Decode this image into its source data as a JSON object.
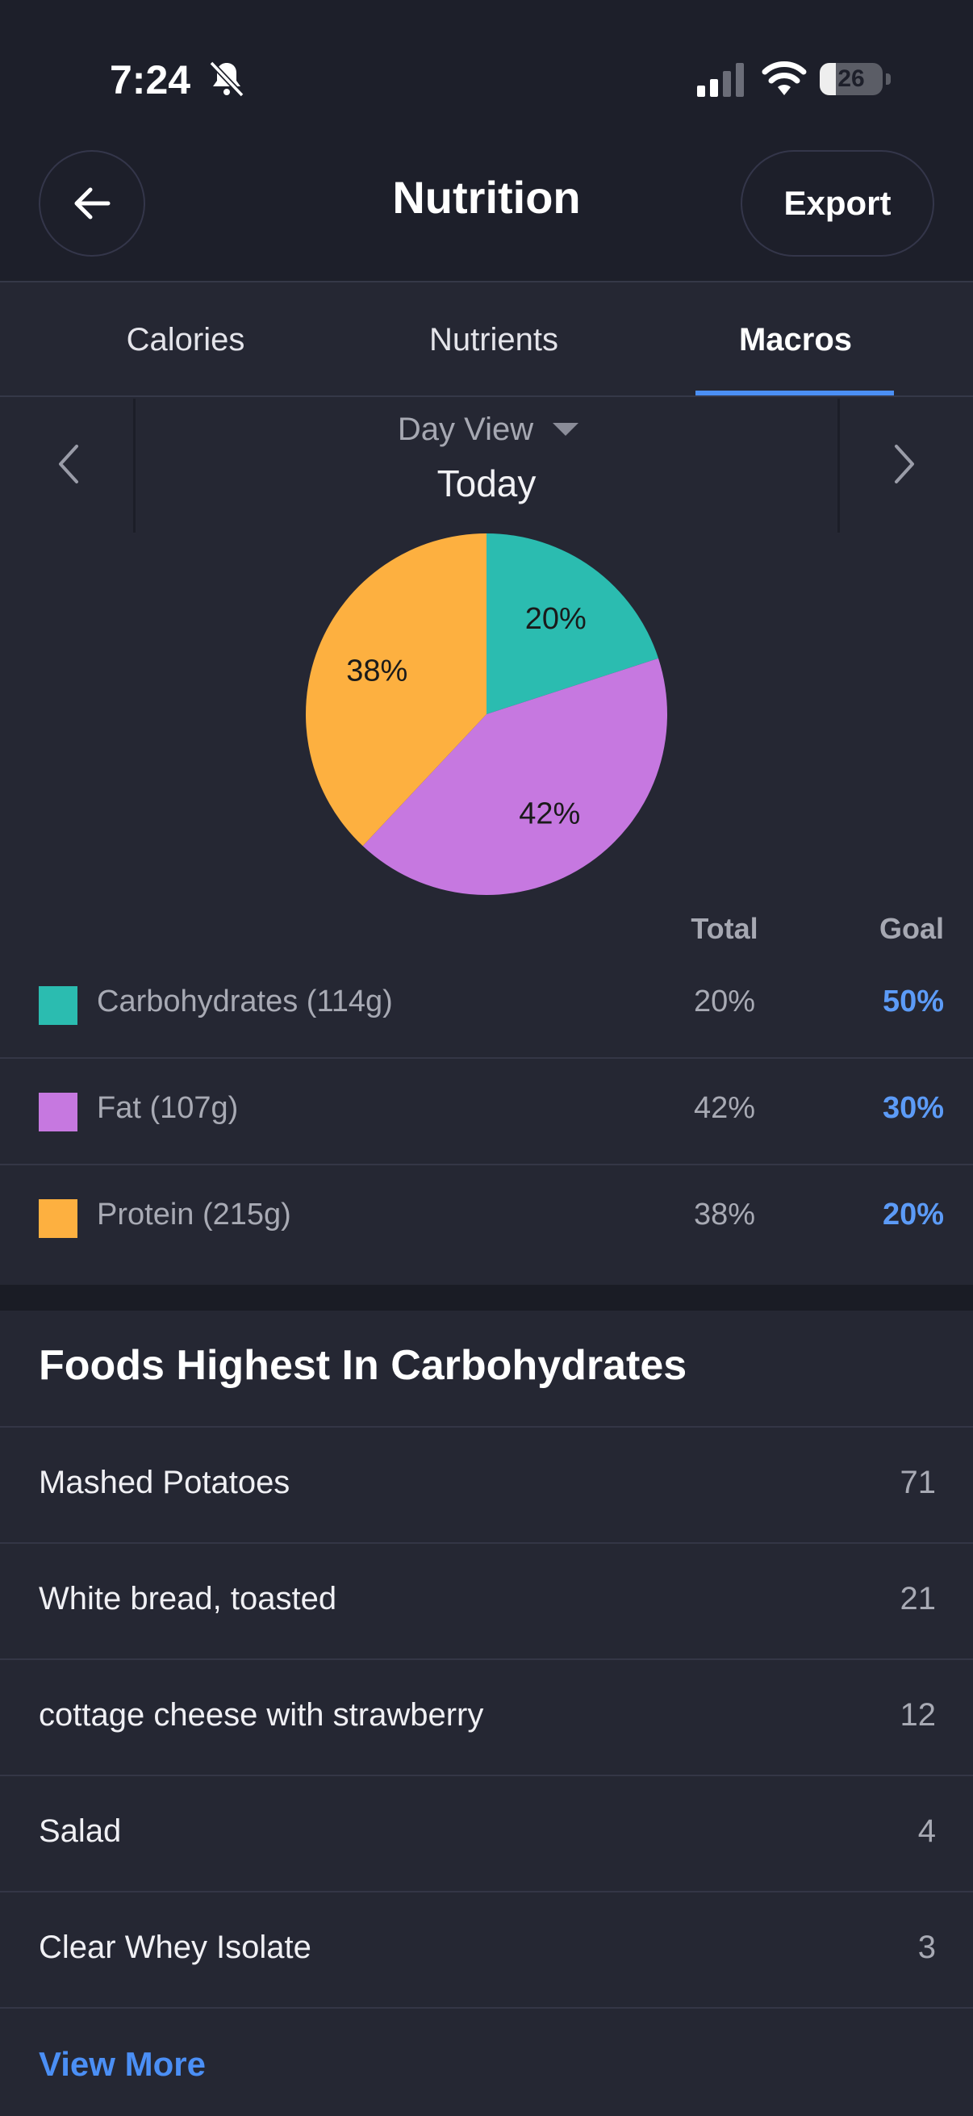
{
  "status_bar": {
    "time": "7:24",
    "battery": "26",
    "battery_fraction": 0.26
  },
  "header": {
    "title": "Nutrition",
    "export_label": "Export"
  },
  "tabs": [
    {
      "label": "Calories",
      "active": false
    },
    {
      "label": "Nutrients",
      "active": false
    },
    {
      "label": "Macros",
      "active": true
    }
  ],
  "date_nav": {
    "view": "Day View",
    "date": "Today"
  },
  "chart_data": {
    "type": "pie",
    "slices": [
      {
        "label": "Carbohydrates",
        "value": 20,
        "text": "20%",
        "color": "#2bbcb0"
      },
      {
        "label": "Fat",
        "value": 42,
        "text": "42%",
        "color": "#c678e0"
      },
      {
        "label": "Protein",
        "value": 38,
        "text": "38%",
        "color": "#fdb040"
      }
    ]
  },
  "macros": {
    "total_header": "Total",
    "goal_header": "Goal",
    "rows": [
      {
        "label": "Carbohydrates (114g)",
        "total": "20%",
        "goal": "50%",
        "color": "#2bbcb0"
      },
      {
        "label": "Fat (107g)",
        "total": "42%",
        "goal": "30%",
        "color": "#c678e0"
      },
      {
        "label": "Protein (215g)",
        "total": "38%",
        "goal": "20%",
        "color": "#fdb040"
      }
    ]
  },
  "foods": {
    "title": "Foods Highest In Carbohydrates",
    "items": [
      {
        "name": "Mashed Potatoes",
        "value": "71"
      },
      {
        "name": "White bread, toasted",
        "value": "21"
      },
      {
        "name": "cottage cheese with strawberry",
        "value": "12"
      },
      {
        "name": "Salad",
        "value": "4"
      },
      {
        "name": "Clear Whey Isolate",
        "value": "3"
      }
    ],
    "view_more": "View More"
  }
}
